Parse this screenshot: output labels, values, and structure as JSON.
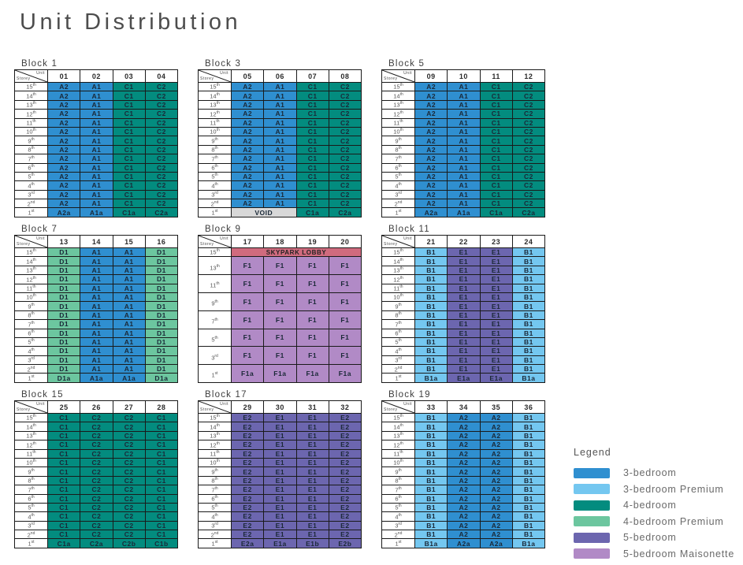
{
  "title": "Unit Distribution",
  "corner": {
    "top": "Unit",
    "bottom": "Storey"
  },
  "storeys": [
    [
      "15",
      "th"
    ],
    [
      "14",
      "th"
    ],
    [
      "13",
      "th"
    ],
    [
      "12",
      "th"
    ],
    [
      "11",
      "th"
    ],
    [
      "10",
      "th"
    ],
    [
      "9",
      "th"
    ],
    [
      "8",
      "th"
    ],
    [
      "7",
      "th"
    ],
    [
      "6",
      "th"
    ],
    [
      "5",
      "th"
    ],
    [
      "4",
      "th"
    ],
    [
      "3",
      "rd"
    ],
    [
      "2",
      "nd"
    ]
  ],
  "first_storey_label": [
    "1",
    "st"
  ],
  "unit_colors": {
    "3br": "#2f8fd0",
    "3brp": "#74c7f0",
    "4br": "#038c7f",
    "4brp": "#6cc69f",
    "5br": "#6c66af",
    "5brm": "#b18ac6",
    "lobby": "#d06b7e",
    "void": "#d8d8d8"
  },
  "blocks": [
    {
      "name": "Block 1",
      "units": [
        "01",
        "02",
        "03",
        "04"
      ],
      "types": [
        "3br",
        "3br",
        "4br",
        "4br"
      ],
      "typical": [
        "A2",
        "A1",
        "C1",
        "C2"
      ],
      "first": [
        {
          "t": "A2a",
          "c": "3br"
        },
        {
          "t": "A1a",
          "c": "3br"
        },
        {
          "t": "C1a",
          "c": "4br"
        },
        {
          "t": "C2a",
          "c": "4br"
        }
      ]
    },
    {
      "name": "Block 3",
      "units": [
        "05",
        "06",
        "07",
        "08"
      ],
      "types": [
        "3br",
        "3br",
        "4br",
        "4br"
      ],
      "typical": [
        "A2",
        "A1",
        "C1",
        "C2"
      ],
      "first": [
        {
          "t": "VOID",
          "c": "void",
          "span": 2
        },
        {
          "t": "C1a",
          "c": "4br"
        },
        {
          "t": "C2a",
          "c": "4br"
        }
      ]
    },
    {
      "name": "Block 5",
      "units": [
        "09",
        "10",
        "11",
        "12"
      ],
      "types": [
        "3br",
        "3br",
        "4br",
        "4br"
      ],
      "typical": [
        "A2",
        "A1",
        "C1",
        "C2"
      ],
      "first": [
        {
          "t": "A2a",
          "c": "3br"
        },
        {
          "t": "A1a",
          "c": "3br"
        },
        {
          "t": "C1a",
          "c": "4br"
        },
        {
          "t": "C2a",
          "c": "4br"
        }
      ]
    },
    {
      "name": "Block 7",
      "units": [
        "13",
        "14",
        "15",
        "16"
      ],
      "types": [
        "4brp",
        "3br",
        "3br",
        "4brp"
      ],
      "typical": [
        "D1",
        "A1",
        "A1",
        "D1"
      ],
      "first": [
        {
          "t": "D1a",
          "c": "4brp"
        },
        {
          "t": "A1a",
          "c": "3br"
        },
        {
          "t": "A1a",
          "c": "3br"
        },
        {
          "t": "D1a",
          "c": "4brp"
        }
      ]
    },
    {
      "name": "Block 9",
      "units": [
        "17",
        "18",
        "19",
        "20"
      ],
      "rows": [
        {
          "label": [
            "15",
            "th"
          ],
          "span": 1,
          "cells": [
            {
              "t": "SKYPARK LOBBY",
              "c": "lobby",
              "span": 4,
              "lobby": true
            }
          ]
        },
        {
          "label": [
            "13",
            "th"
          ],
          "span": 2,
          "cells": [
            {
              "t": "F1",
              "c": "5brm"
            },
            {
              "t": "F1",
              "c": "5brm"
            },
            {
              "t": "F1",
              "c": "5brm"
            },
            {
              "t": "F1",
              "c": "5brm"
            }
          ]
        },
        {
          "label": [
            "11",
            "th"
          ],
          "span": 2,
          "cells": [
            {
              "t": "F1",
              "c": "5brm"
            },
            {
              "t": "F1",
              "c": "5brm"
            },
            {
              "t": "F1",
              "c": "5brm"
            },
            {
              "t": "F1",
              "c": "5brm"
            }
          ]
        },
        {
          "label": [
            "9",
            "th"
          ],
          "span": 2,
          "cells": [
            {
              "t": "F1",
              "c": "5brm"
            },
            {
              "t": "F1",
              "c": "5brm"
            },
            {
              "t": "F1",
              "c": "5brm"
            },
            {
              "t": "F1",
              "c": "5brm"
            }
          ]
        },
        {
          "label": [
            "7",
            "th"
          ],
          "span": 2,
          "cells": [
            {
              "t": "F1",
              "c": "5brm"
            },
            {
              "t": "F1",
              "c": "5brm"
            },
            {
              "t": "F1",
              "c": "5brm"
            },
            {
              "t": "F1",
              "c": "5brm"
            }
          ]
        },
        {
          "label": [
            "5",
            "th"
          ],
          "span": 2,
          "cells": [
            {
              "t": "F1",
              "c": "5brm"
            },
            {
              "t": "F1",
              "c": "5brm"
            },
            {
              "t": "F1",
              "c": "5brm"
            },
            {
              "t": "F1",
              "c": "5brm"
            }
          ]
        },
        {
          "label": [
            "3",
            "rd"
          ],
          "span": 2,
          "cells": [
            {
              "t": "F1",
              "c": "5brm"
            },
            {
              "t": "F1",
              "c": "5brm"
            },
            {
              "t": "F1",
              "c": "5brm"
            },
            {
              "t": "F1",
              "c": "5brm"
            }
          ]
        },
        {
          "label": [
            "1",
            "st"
          ],
          "span": 2,
          "cells": [
            {
              "t": "F1a",
              "c": "5brm"
            },
            {
              "t": "F1a",
              "c": "5brm"
            },
            {
              "t": "F1a",
              "c": "5brm"
            },
            {
              "t": "F1a",
              "c": "5brm"
            }
          ]
        }
      ]
    },
    {
      "name": "Block 11",
      "units": [
        "21",
        "22",
        "23",
        "24"
      ],
      "types": [
        "3brp",
        "5br",
        "5br",
        "3brp"
      ],
      "typical": [
        "B1",
        "E1",
        "E1",
        "B1"
      ],
      "first": [
        {
          "t": "B1a",
          "c": "3brp"
        },
        {
          "t": "E1a",
          "c": "5br"
        },
        {
          "t": "E1a",
          "c": "5br"
        },
        {
          "t": "B1a",
          "c": "3brp"
        }
      ]
    },
    {
      "name": "Block 15",
      "units": [
        "25",
        "26",
        "27",
        "28"
      ],
      "types": [
        "4br",
        "4br",
        "4br",
        "4br"
      ],
      "typical": [
        "C1",
        "C2",
        "C2",
        "C1"
      ],
      "first": [
        {
          "t": "C1a",
          "c": "4br"
        },
        {
          "t": "C2a",
          "c": "4br"
        },
        {
          "t": "C2b",
          "c": "4br"
        },
        {
          "t": "C1b",
          "c": "4br"
        }
      ]
    },
    {
      "name": "Block 17",
      "units": [
        "29",
        "30",
        "31",
        "32"
      ],
      "types": [
        "5br",
        "5br",
        "5br",
        "5br"
      ],
      "typical": [
        "E2",
        "E1",
        "E1",
        "E2"
      ],
      "first": [
        {
          "t": "E2a",
          "c": "5br"
        },
        {
          "t": "E1a",
          "c": "5br"
        },
        {
          "t": "E1b",
          "c": "5br"
        },
        {
          "t": "E2b",
          "c": "5br"
        }
      ]
    },
    {
      "name": "Block 19",
      "units": [
        "33",
        "34",
        "35",
        "36"
      ],
      "types": [
        "3brp",
        "3br",
        "3br",
        "3brp"
      ],
      "typical": [
        "B1",
        "A2",
        "A2",
        "B1"
      ],
      "first": [
        {
          "t": "B1a",
          "c": "3brp"
        },
        {
          "t": "A2a",
          "c": "3br"
        },
        {
          "t": "A2a",
          "c": "3br"
        },
        {
          "t": "B1a",
          "c": "3brp"
        }
      ]
    }
  ],
  "legend": {
    "title": "Legend",
    "items": [
      {
        "label": "3-bedroom",
        "color_key": "3br"
      },
      {
        "label": "3-bedroom Premium",
        "color_key": "3brp"
      },
      {
        "label": "4-bedroom",
        "color_key": "4br"
      },
      {
        "label": "4-bedroom Premium",
        "color_key": "4brp"
      },
      {
        "label": "5-bedroom",
        "color_key": "5br"
      },
      {
        "label": "5-bedroom Maisonette",
        "color_key": "5brm"
      }
    ]
  }
}
